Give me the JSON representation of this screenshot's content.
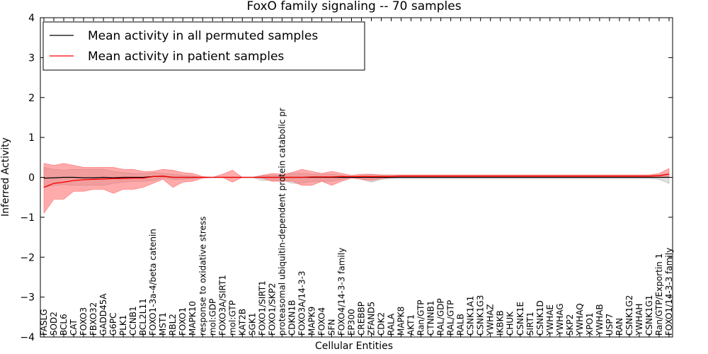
{
  "chart_data": {
    "type": "line",
    "title": "FoxO family signaling -- 70 samples",
    "xlabel": "Cellular Entities",
    "ylabel": "Inferred Activity",
    "ylim": [
      -4,
      4
    ],
    "yticks": [
      -4,
      -3,
      -2,
      -1,
      0,
      1,
      2,
      3,
      4
    ],
    "ytick_labels": [
      "−4",
      "−3",
      "−2",
      "−1",
      "0",
      "1",
      "2",
      "3",
      "4"
    ],
    "grid": false,
    "legend_position": "top-left",
    "categories": [
      "FASLG",
      "SOD2",
      "BCL6",
      "CAT",
      "FOXO3",
      "FBXO32",
      "GADD45A",
      "G6PC",
      "PLK1",
      "CCNB1",
      "BCL2L11",
      "FOXO1-3a-4/beta catenin",
      "MST1",
      "RBL2",
      "FOXO1",
      "MAPK10",
      "response to oxidative stress",
      "mol:GDP",
      "FOXO3A/SIRT1",
      "mol:GTP",
      "KAT2B",
      "SGK1",
      "FOXO1/SIRT1",
      "FOXO1/SKP2",
      "proteasomal ubiquitin-dependent protein catabolic pr",
      "CDKN1B",
      "FOXO3A/14-3-3",
      "MAPK9",
      "FOXO4",
      "SFN",
      "FOXO4/14-3-3 family",
      "EP300",
      "CREBBP",
      "ZFAND5",
      "CDK2",
      "RALA",
      "MAPK8",
      "AKT1",
      "Ran/GTP",
      "CTNNB1",
      "RAL/GDP",
      "RAL/GTP",
      "RALB",
      "CSNK1A1",
      "CSNK1G3",
      "YWHAZ",
      "IKBKB",
      "CHUK",
      "CSNK1E",
      "SIRT1",
      "CSNK1D",
      "YWHAE",
      "YWHAG",
      "SKP2",
      "YWHAQ",
      "XPO1",
      "YWHAB",
      "USP7",
      "RAN",
      "CSNK1G2",
      "YWHAH",
      "CSNK1G1",
      "Ran/GTP/Exportin 1",
      "FOXO1/14-3-3 family"
    ],
    "series": [
      {
        "name": "Mean activity in all permuted samples",
        "color": "#000000",
        "values": [
          -0.02,
          -0.01,
          0,
          0,
          -0.01,
          -0.01,
          0,
          -0.01,
          0,
          0,
          0,
          0.02,
          0.03,
          0,
          0,
          0,
          0,
          0,
          0,
          0,
          0,
          0,
          0,
          0,
          0,
          0,
          0,
          0,
          0,
          0,
          0,
          0,
          0,
          0,
          0,
          0,
          0,
          0,
          0,
          0,
          0,
          0,
          0,
          0,
          0,
          0,
          0,
          0,
          0,
          0,
          0,
          0,
          0,
          0,
          0,
          0,
          0,
          0,
          0,
          0,
          0,
          0,
          0,
          0
        ],
        "band_lower": [
          -0.25,
          -0.2,
          -0.18,
          -0.2,
          -0.2,
          -0.2,
          -0.2,
          -0.15,
          -0.12,
          -0.1,
          -0.1,
          -0.08,
          -0.02,
          -0.05,
          -0.05,
          -0.03,
          0,
          0,
          0,
          0,
          0,
          0,
          -0.08,
          -0.08,
          -0.06,
          -0.15,
          -0.15,
          -0.1,
          -0.1,
          -0.1,
          -0.05,
          0,
          -0.05,
          -0.12,
          -0.05,
          -0.03,
          -0.03,
          -0.03,
          -0.03,
          -0.03,
          -0.03,
          -0.03,
          -0.03,
          -0.03,
          -0.03,
          -0.03,
          -0.03,
          -0.03,
          -0.03,
          -0.03,
          -0.03,
          -0.03,
          -0.03,
          -0.03,
          -0.03,
          -0.03,
          -0.03,
          -0.03,
          -0.03,
          -0.03,
          -0.03,
          -0.03,
          -0.05,
          -0.15
        ],
        "band_upper": [
          0.25,
          0.2,
          0.18,
          0.2,
          0.2,
          0.2,
          0.2,
          0.15,
          0.12,
          0.1,
          0.1,
          0.12,
          0.1,
          0.08,
          0.05,
          0.03,
          0,
          0,
          0,
          0,
          0,
          0,
          0.05,
          0.05,
          0.05,
          0.1,
          0.1,
          0.08,
          0.08,
          0.08,
          0.05,
          0,
          0.05,
          0.08,
          0.05,
          0.05,
          0.05,
          0.05,
          0.05,
          0.05,
          0.05,
          0.05,
          0.05,
          0.05,
          0.05,
          0.05,
          0.05,
          0.05,
          0.05,
          0.05,
          0.05,
          0.05,
          0.05,
          0.05,
          0.05,
          0.05,
          0.05,
          0.05,
          0.05,
          0.05,
          0.05,
          0.05,
          0.06,
          0.1
        ]
      },
      {
        "name": "Mean activity in patient samples",
        "color": "#ff0000",
        "values": [
          -0.25,
          -0.15,
          -0.12,
          -0.08,
          -0.06,
          -0.05,
          -0.04,
          -0.03,
          -0.03,
          -0.02,
          -0.02,
          0.02,
          0.03,
          0,
          0,
          0,
          0,
          0,
          0,
          0,
          0,
          0,
          0,
          0,
          0,
          0,
          0,
          0.01,
          0.01,
          0.01,
          0.02,
          0.02,
          0.02,
          0.02,
          0.02,
          0.02,
          0.03,
          0.03,
          0.03,
          0.03,
          0.03,
          0.03,
          0.03,
          0.03,
          0.03,
          0.03,
          0.03,
          0.03,
          0.03,
          0.03,
          0.03,
          0.03,
          0.03,
          0.03,
          0.03,
          0.03,
          0.03,
          0.03,
          0.03,
          0.03,
          0.03,
          0.03,
          0.04,
          0.08
        ],
        "band_lower": [
          -0.9,
          -0.55,
          -0.55,
          -0.35,
          -0.35,
          -0.3,
          -0.3,
          -0.4,
          -0.3,
          -0.3,
          -0.25,
          -0.15,
          -0.05,
          -0.25,
          -0.12,
          -0.1,
          -0.02,
          0,
          0,
          -0.12,
          0,
          0,
          -0.02,
          -0.1,
          -0.1,
          -0.1,
          -0.2,
          -0.2,
          -0.1,
          -0.2,
          -0.1,
          -0.02,
          -0.05,
          -0.08,
          -0.03,
          -0.01,
          0,
          0,
          0,
          0,
          0,
          0,
          0,
          0,
          0,
          0,
          0,
          0,
          0,
          0,
          0,
          0,
          0,
          0,
          0,
          0,
          0,
          0,
          0,
          0,
          0,
          0,
          0,
          0
        ],
        "band_upper": [
          0.35,
          0.3,
          0.35,
          0.3,
          0.25,
          0.25,
          0.25,
          0.25,
          0.2,
          0.2,
          0.15,
          0.15,
          0.2,
          0.18,
          0.12,
          0.1,
          0.02,
          0,
          0.08,
          0.18,
          0,
          0,
          0.05,
          0.1,
          0.08,
          0.12,
          0.2,
          0.15,
          0.1,
          0.15,
          0.1,
          0.05,
          0.08,
          0.08,
          0.06,
          0.06,
          0.06,
          0.06,
          0.06,
          0.06,
          0.06,
          0.06,
          0.06,
          0.06,
          0.06,
          0.06,
          0.06,
          0.06,
          0.06,
          0.06,
          0.06,
          0.06,
          0.06,
          0.06,
          0.06,
          0.06,
          0.06,
          0.06,
          0.06,
          0.06,
          0.06,
          0.06,
          0.1,
          0.22
        ]
      }
    ]
  }
}
